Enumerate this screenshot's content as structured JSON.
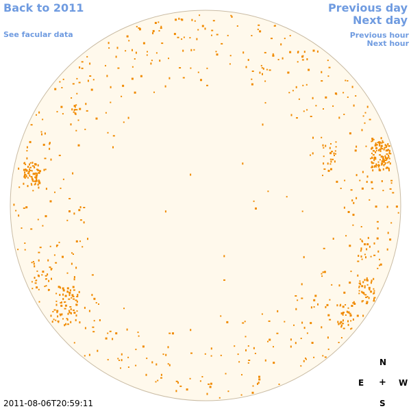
{
  "nav": {
    "back": "Back to 2011",
    "facular": "See facular data",
    "previous_day": "Previous day",
    "next_day": "Next day",
    "previous_hour": "Previous hour",
    "next_hour": "Next hour"
  },
  "timestamp": "2011-08-06T20:59:11",
  "compass": {
    "north": "N",
    "east": "E",
    "center": "+",
    "west": "W",
    "south": "S"
  },
  "colors": {
    "link": "#6f9be0",
    "disk_fill": "#fff9ec",
    "disk_edge": "#c9bba3",
    "feature": "#f08a00"
  }
}
